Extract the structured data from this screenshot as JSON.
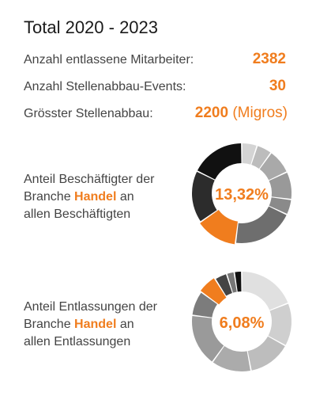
{
  "title": "Total 2020 - 2023",
  "stats": [
    {
      "label": "Anzahl entlassene Mitarbeiter:",
      "value": "2382",
      "suffix": ""
    },
    {
      "label": "Anzahl Stellenabbau-Events:",
      "value": "30",
      "suffix": ""
    },
    {
      "label": "Grösster Stellenabbau:",
      "value": "2200",
      "suffix": "(Migros)"
    }
  ],
  "charts": [
    {
      "label_line1": "Anteil Beschäftigter der",
      "label_pre": "Branche ",
      "label_highlight": "Handel",
      "label_post": " an",
      "label_line3": "allen Beschäftigten",
      "center_text": "13,32%"
    },
    {
      "label_line1": "Anteil Entlassungen der",
      "label_pre": "Branche ",
      "label_highlight": "Handel",
      "label_post": " an",
      "label_line3": "allen Entlassungen",
      "center_text": "6,08%"
    }
  ],
  "colors": {
    "accent": "#f07d1e"
  },
  "chart_data": [
    {
      "type": "pie",
      "highlight": "Handel",
      "highlight_value": 13.32,
      "values": [
        5,
        5,
        8,
        9,
        5,
        20,
        13.32,
        17,
        17.68
      ],
      "colors": [
        "#d4d4d4",
        "#bcbcbc",
        "#a9a9a9",
        "#999999",
        "#8a8a8a",
        "#6e6e6e",
        "#f07d1e",
        "#2c2c2c",
        "#111111"
      ],
      "highlight_index": 6
    },
    {
      "type": "pie",
      "highlight": "Handel",
      "highlight_value": 6.08,
      "values": [
        19,
        14,
        14,
        13,
        17,
        8,
        6.08,
        4,
        2.5,
        2.42
      ],
      "colors": [
        "#e0e0e0",
        "#cfcfcf",
        "#bdbdbd",
        "#ababab",
        "#9a9a9a",
        "#7c7c7c",
        "#f07d1e",
        "#444444",
        "#777777",
        "#111111"
      ],
      "highlight_index": 6
    }
  ]
}
